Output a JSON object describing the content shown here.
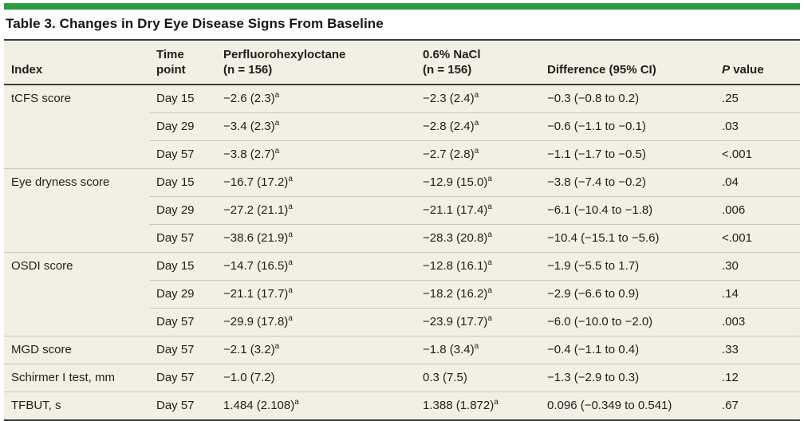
{
  "colors": {
    "accent_green": "#2d9b41",
    "table_bg": "#f2f0e4",
    "rule_dark": "#3b3b3b",
    "rule_light": "#c9c7bc",
    "text_color": "#1e1e1e"
  },
  "title": "Table 3. Changes in Dry Eye Disease Signs From Baseline",
  "header": {
    "index": "Index",
    "time_line1": "Time",
    "time_line2": "point",
    "pfho_line1": "Perfluorohexyloctane",
    "pfho_line2": "(n = 156)",
    "nacl_line1": "0.6% NaCl",
    "nacl_line2": "(n = 156)",
    "difference": "Difference (95% CI)",
    "pvalue_p": "P",
    "pvalue_rest": "value"
  },
  "rows": [
    {
      "index": "tCFS score",
      "time": "Day 15",
      "pfho": "−2.6 (2.3)",
      "pfho_sup": "a",
      "nacl": "−2.3 (2.4)",
      "nacl_sup": "a",
      "diff": "−0.3 (−0.8 to 0.2)",
      "p": ".25"
    },
    {
      "index": "",
      "time": "Day 29",
      "pfho": "−3.4 (2.3)",
      "pfho_sup": "a",
      "nacl": "−2.8 (2.4)",
      "nacl_sup": "a",
      "diff": "−0.6 (−1.1 to −0.1)",
      "p": ".03"
    },
    {
      "index": "",
      "time": "Day 57",
      "pfho": "−3.8 (2.7)",
      "pfho_sup": "a",
      "nacl": "−2.7 (2.8)",
      "nacl_sup": "a",
      "diff": "−1.1 (−1.7 to −0.5)",
      "p": "<.001"
    },
    {
      "index": "Eye dryness score",
      "time": "Day 15",
      "pfho": "−16.7 (17.2)",
      "pfho_sup": "a",
      "nacl": "−12.9 (15.0)",
      "nacl_sup": "a",
      "diff": "−3.8 (−7.4 to −0.2)",
      "p": ".04"
    },
    {
      "index": "",
      "time": "Day 29",
      "pfho": "−27.2 (21.1)",
      "pfho_sup": "a",
      "nacl": "−21.1 (17.4)",
      "nacl_sup": "a",
      "diff": "−6.1 (−10.4 to −1.8)",
      "p": ".006"
    },
    {
      "index": "",
      "time": "Day 57",
      "pfho": "−38.6 (21.9)",
      "pfho_sup": "a",
      "nacl": "−28.3 (20.8)",
      "nacl_sup": "a",
      "diff": "−10.4 (−15.1 to −5.6)",
      "p": "<.001"
    },
    {
      "index": "OSDI score",
      "time": "Day 15",
      "pfho": "−14.7 (16.5)",
      "pfho_sup": "a",
      "nacl": "−12.8 (16.1)",
      "nacl_sup": "a",
      "diff": "−1.9 (−5.5 to 1.7)",
      "p": ".30"
    },
    {
      "index": "",
      "time": "Day 29",
      "pfho": "−21.1 (17.7)",
      "pfho_sup": "a",
      "nacl": "−18.2 (16.2)",
      "nacl_sup": "a",
      "diff": "−2.9 (−6.6 to 0.9)",
      "p": ".14"
    },
    {
      "index": "",
      "time": "Day 57",
      "pfho": "−29.9 (17.8)",
      "pfho_sup": "a",
      "nacl": "−23.9 (17.7)",
      "nacl_sup": "a",
      "diff": "−6.0 (−10.0 to −2.0)",
      "p": ".003"
    },
    {
      "index": "MGD score",
      "time": "Day 57",
      "pfho": "−2.1 (3.2)",
      "pfho_sup": "a",
      "nacl": "−1.8 (3.4)",
      "nacl_sup": "a",
      "diff": "−0.4 (−1.1 to 0.4)",
      "p": ".33"
    },
    {
      "index": "Schirmer I test, mm",
      "time": "Day 57",
      "pfho": "−1.0 (7.2)",
      "pfho_sup": "",
      "nacl": "0.3 (7.5)",
      "nacl_sup": "",
      "diff": "−1.3 (−2.9 to 0.3)",
      "p": ".12"
    },
    {
      "index": "TFBUT, s",
      "time": "Day 57",
      "pfho": "1.484 (2.108)",
      "pfho_sup": "a",
      "nacl": "1.388 (1.872)",
      "nacl_sup": "a",
      "diff": "0.096 (−0.349 to 0.541)",
      "p": ".67"
    }
  ],
  "chart_data": {
    "type": "table",
    "title": "Table 3. Changes in Dry Eye Disease Signs From Baseline",
    "columns": [
      "Index",
      "Time point",
      "Perfluorohexyloctane (n = 156)",
      "0.6% NaCl (n = 156)",
      "Difference (95% CI)",
      "P value"
    ],
    "rows": [
      [
        "tCFS score",
        "Day 15",
        "−2.6 (2.3)ᵃ",
        "−2.3 (2.4)ᵃ",
        "−0.3 (−0.8 to 0.2)",
        ".25"
      ],
      [
        "tCFS score",
        "Day 29",
        "−3.4 (2.3)ᵃ",
        "−2.8 (2.4)ᵃ",
        "−0.6 (−1.1 to −0.1)",
        ".03"
      ],
      [
        "tCFS score",
        "Day 57",
        "−3.8 (2.7)ᵃ",
        "−2.7 (2.8)ᵃ",
        "−1.1 (−1.7 to −0.5)",
        "<.001"
      ],
      [
        "Eye dryness score",
        "Day 15",
        "−16.7 (17.2)ᵃ",
        "−12.9 (15.0)ᵃ",
        "−3.8 (−7.4 to −0.2)",
        ".04"
      ],
      [
        "Eye dryness score",
        "Day 29",
        "−27.2 (21.1)ᵃ",
        "−21.1 (17.4)ᵃ",
        "−6.1 (−10.4 to −1.8)",
        ".006"
      ],
      [
        "Eye dryness score",
        "Day 57",
        "−38.6 (21.9)ᵃ",
        "−28.3 (20.8)ᵃ",
        "−10.4 (−15.1 to −5.6)",
        "<.001"
      ],
      [
        "OSDI score",
        "Day 15",
        "−14.7 (16.5)ᵃ",
        "−12.8 (16.1)ᵃ",
        "−1.9 (−5.5 to 1.7)",
        ".30"
      ],
      [
        "OSDI score",
        "Day 29",
        "−21.1 (17.7)ᵃ",
        "−18.2 (16.2)ᵃ",
        "−2.9 (−6.6 to 0.9)",
        ".14"
      ],
      [
        "OSDI score",
        "Day 57",
        "−29.9 (17.8)ᵃ",
        "−23.9 (17.7)ᵃ",
        "−6.0 (−10.0 to −2.0)",
        ".003"
      ],
      [
        "MGD score",
        "Day 57",
        "−2.1 (3.2)ᵃ",
        "−1.8 (3.4)ᵃ",
        "−0.4 (−1.1 to 0.4)",
        ".33"
      ],
      [
        "Schirmer I test, mm",
        "Day 57",
        "−1.0 (7.2)",
        "0.3 (7.5)",
        "−1.3 (−2.9 to 0.3)",
        ".12"
      ],
      [
        "TFBUT, s",
        "Day 57",
        "1.484 (2.108)ᵃ",
        "1.388 (1.872)ᵃ",
        "0.096 (−0.349 to 0.541)",
        ".67"
      ]
    ]
  }
}
